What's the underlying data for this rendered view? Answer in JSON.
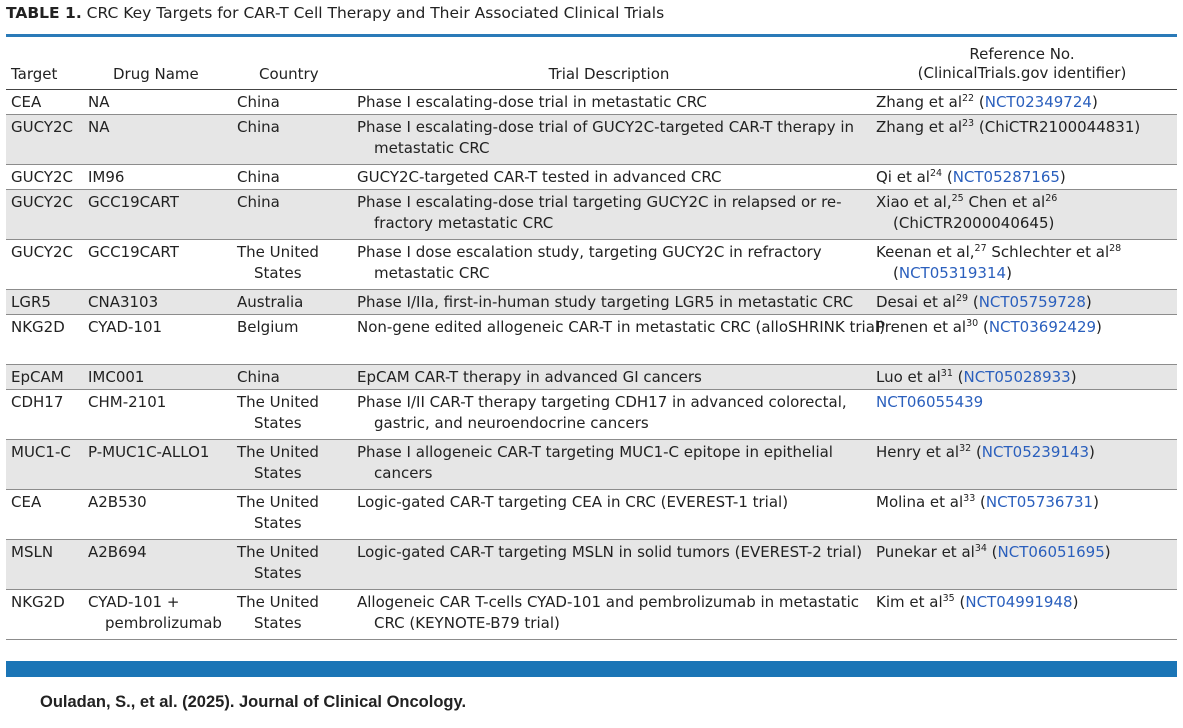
{
  "table": {
    "label": "TABLE 1.",
    "caption": "CRC Key Targets for CAR-T Cell Therapy and Their Associated Clinical Trials",
    "headers": {
      "target": "Target",
      "drug": "Drug Name",
      "country": "Country",
      "description": "Trial Description",
      "reference_line1": "Reference No.",
      "reference_line2": "(ClinicalTrials.gov identifier)"
    },
    "rows": [
      {
        "target": "CEA",
        "drug": "NA",
        "country": "China",
        "description": "Phase I escalating-dose trial in metastatic CRC",
        "ref_a": "Zhang et al",
        "sup_a": "22",
        "ref_b": "",
        "sup_b": "",
        "id": "NCT02349724",
        "id_linked": true
      },
      {
        "target": "GUCY2C",
        "drug": "NA",
        "country": "China",
        "description": "Phase I escalating-dose trial of GUCY2C-targeted CAR-T therapy in metastatic CRC",
        "ref_a": "Zhang et al",
        "sup_a": "23",
        "ref_b": "",
        "sup_b": "",
        "id": "ChiCTR2100044831",
        "id_linked": false
      },
      {
        "target": "GUCY2C",
        "drug": "IM96",
        "country": "China",
        "description": "GUCY2C-targeted CAR-T tested in advanced CRC",
        "ref_a": "Qi et al",
        "sup_a": "24",
        "ref_b": "",
        "sup_b": "",
        "id": "NCT05287165",
        "id_linked": true
      },
      {
        "target": "GUCY2C",
        "drug": "GCC19CART",
        "country": "China",
        "description": "Phase I escalating-dose trial targeting GUCY2C in relapsed or re-fractory metastatic CRC",
        "ref_a": "Xiao et al,",
        "sup_a": "25",
        "ref_b": "Chen et al",
        "sup_b": "26",
        "id": "ChiCTR2000040645",
        "id_linked": false
      },
      {
        "target": "GUCY2C",
        "drug": "GCC19CART",
        "country": "The United States",
        "description": "Phase I dose escalation study, targeting GUCY2C in refractory metastatic CRC",
        "ref_a": "Keenan et al,",
        "sup_a": "27",
        "ref_b": "Schlechter et al",
        "sup_b": "28",
        "id": "NCT05319314",
        "id_linked": true
      },
      {
        "target": "LGR5",
        "drug": "CNA3103",
        "country": "Australia",
        "description": "Phase I/IIa, first-in-human study targeting LGR5 in metastatic CRC",
        "ref_a": "Desai et al",
        "sup_a": "29",
        "ref_b": "",
        "sup_b": "",
        "id": "NCT05759728",
        "id_linked": true
      },
      {
        "target": "NKG2D",
        "drug": "CYAD-101",
        "country": "Belgium",
        "description": "Non-gene edited allogeneic CAR-T in metastatic CRC (alloSHRINK trial)",
        "ref_a": "Prenen et al",
        "sup_a": "30",
        "ref_b": "",
        "sup_b": "",
        "id": "NCT03692429",
        "id_linked": true
      },
      {
        "target": "EpCAM",
        "drug": "IMC001",
        "country": "China",
        "description": "EpCAM CAR-T therapy in advanced GI cancers",
        "ref_a": "Luo et al",
        "sup_a": "31",
        "ref_b": "",
        "sup_b": "",
        "id": "NCT05028933",
        "id_linked": true
      },
      {
        "target": "CDH17",
        "drug": "CHM-2101",
        "country": "The United States",
        "description": "Phase I/II CAR-T therapy targeting CDH17 in advanced colorectal, gastric, and neuroendocrine cancers",
        "ref_a": "",
        "sup_a": "",
        "ref_b": "",
        "sup_b": "",
        "id": "NCT06055439",
        "id_linked": true
      },
      {
        "target": "MUC1-C",
        "drug": "P-MUC1C-ALLO1",
        "country": "The United States",
        "description": "Phase I allogeneic CAR-T targeting MUC1-C epitope in epithelial cancers",
        "ref_a": "Henry et al",
        "sup_a": "32",
        "ref_b": "",
        "sup_b": "",
        "id": "NCT05239143",
        "id_linked": true
      },
      {
        "target": "CEA",
        "drug": "A2B530",
        "country": "The United States",
        "description": "Logic-gated CAR-T targeting CEA in CRC (EVEREST-1 trial)",
        "ref_a": "Molina et al",
        "sup_a": "33",
        "ref_b": "",
        "sup_b": "",
        "id": "NCT05736731",
        "id_linked": true
      },
      {
        "target": "MSLN",
        "drug": "A2B694",
        "country": "The United States",
        "description": "Logic-gated CAR-T targeting MSLN in solid tumors (EVEREST-2 trial)",
        "ref_a": "Punekar et al",
        "sup_a": "34",
        "ref_b": "",
        "sup_b": "",
        "id": "NCT06051695",
        "id_linked": true
      },
      {
        "target": "NKG2D",
        "drug": "CYAD-101 + pembrolizumab",
        "country": "The United States",
        "description": "Allogeneic CAR T-cells CYAD-101 and pembrolizumab in metastatic CRC (KEYNOTE-B79 trial)",
        "ref_a": "Kim et al",
        "sup_a": "35",
        "ref_b": "",
        "sup_b": "",
        "id": "NCT04991948",
        "id_linked": true
      }
    ]
  },
  "citation": "Ouladan, S., et al. (2025). Journal of Clinical Oncology.",
  "colors": {
    "rule": "#2a7ab8",
    "bottom_bar": "#1b75b6",
    "link": "#2a5fbd",
    "row_shade": "#e6e6e6"
  }
}
